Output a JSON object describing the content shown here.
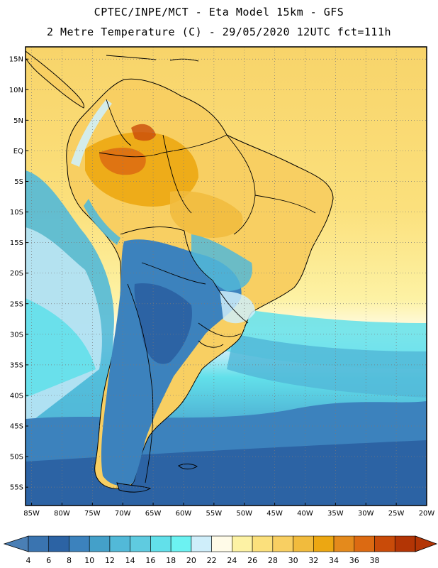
{
  "header": {
    "title_line1": "CPTEC/INPE/MCT -  Eta Model 15km - GFS",
    "title_line2": "2 Metre Temperature (C) - 29/05/2020 12UTC fct=111h"
  },
  "map": {
    "lat_labels": [
      "15N",
      "10N",
      "5N",
      "EQ",
      "5S",
      "10S",
      "15S",
      "20S",
      "25S",
      "30S",
      "35S",
      "40S",
      "45S",
      "50S",
      "55S"
    ],
    "lat_values": [
      15,
      10,
      5,
      0,
      -5,
      -10,
      -15,
      -20,
      -25,
      -30,
      -35,
      -40,
      -45,
      -50,
      -55
    ],
    "lon_labels": [
      "85W",
      "80W",
      "75W",
      "70W",
      "65W",
      "60W",
      "55W",
      "50W",
      "45W",
      "40W",
      "35W",
      "30W",
      "25W",
      "20W"
    ],
    "lon_values": [
      -85,
      -80,
      -75,
      -70,
      -65,
      -60,
      -55,
      -50,
      -45,
      -40,
      -35,
      -30,
      -25,
      -20
    ],
    "lat_range": [
      -58,
      17
    ],
    "lon_range": [
      -86,
      -20
    ],
    "grid": true
  },
  "colorbar": {
    "labels": [
      "4",
      "6",
      "8",
      "10",
      "12",
      "14",
      "16",
      "18",
      "20",
      "22",
      "24",
      "26",
      "28",
      "30",
      "32",
      "34",
      "36",
      "38"
    ],
    "colors": [
      "#3a74b0",
      "#2c63a4",
      "#3c82bd",
      "#44a0c9",
      "#52b9d8",
      "#5fcbe0",
      "#62e0ea",
      "#6cf2f2",
      "#cfeefa",
      "#fffbe8",
      "#fdf2a4",
      "#fbe07c",
      "#f8cf62",
      "#f1bb3d",
      "#eca712",
      "#e48a1c",
      "#dc6a12",
      "#c94b09",
      "#b33505"
    ],
    "underflow_color": "#4a7fb5",
    "overflow_color": "#b33505"
  }
}
